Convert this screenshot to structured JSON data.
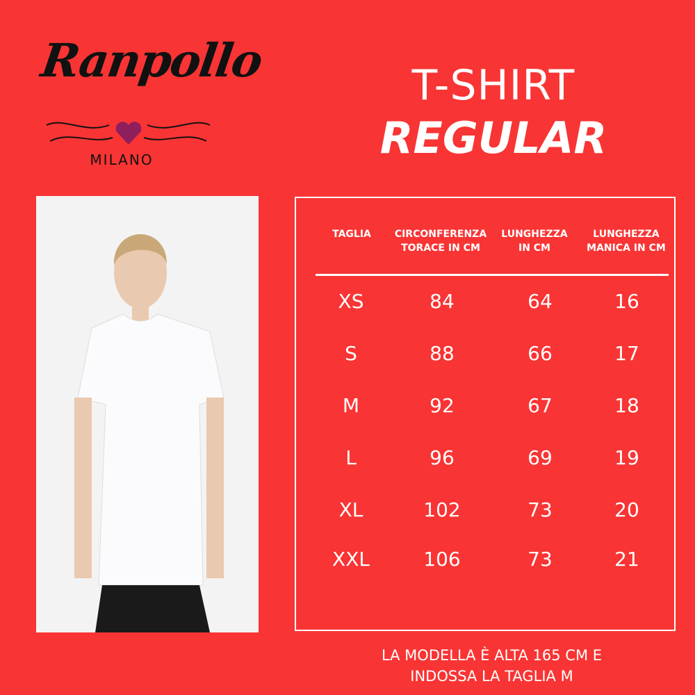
{
  "brand": {
    "name": "Ranpollo",
    "city": "MILANO",
    "heart_color": "#8e1f5c"
  },
  "title": {
    "line1": "T-SHIRT",
    "line2": "REGULAR"
  },
  "colors": {
    "background": "#f93434",
    "text": "#ffffff"
  },
  "table": {
    "headers": [
      [
        "TAGLIA",
        ""
      ],
      [
        "CIRCONFERENZA",
        "TORACE IN CM"
      ],
      [
        "LUNGHEZZA",
        "IN CM"
      ],
      [
        "LUNGHEZZA",
        "MANICA IN CM"
      ]
    ],
    "rows": [
      [
        "XS",
        "84",
        "64",
        "16"
      ],
      [
        "S",
        "88",
        "66",
        "17"
      ],
      [
        "M",
        "92",
        "67",
        "18"
      ],
      [
        "L",
        "96",
        "69",
        "19"
      ],
      [
        "XL",
        "102",
        "73",
        "20"
      ],
      [
        "XXL",
        "106",
        "73",
        "21"
      ]
    ]
  },
  "footer": {
    "line1": "LA MODELLA È ALTA 165 CM E",
    "line2": "INDOSSA LA TAGLIA M"
  }
}
